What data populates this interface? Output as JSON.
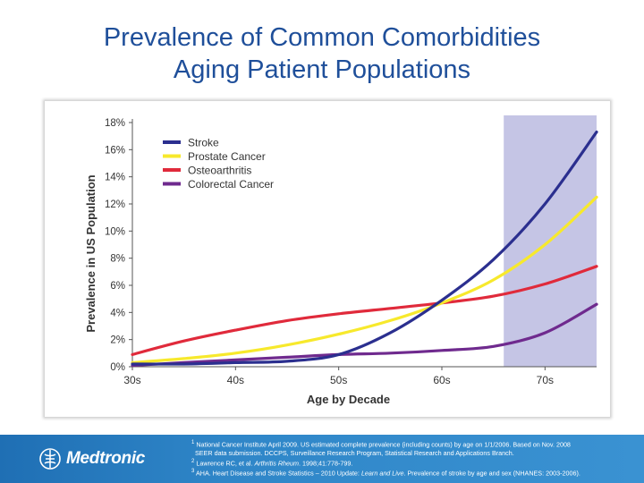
{
  "slide": {
    "title_line1": "Prevalence of Common Comorbidities",
    "title_line2": "Aging Patient Populations"
  },
  "colors": {
    "title": "#1f4f9a",
    "footer": "#2a7fc2",
    "highlight_band": "#b7b7df"
  },
  "chart_data": {
    "type": "line",
    "xlabel": "Age by Decade",
    "ylabel": "Prevalence in US Population",
    "x_ticks": [
      "30s",
      "40s",
      "50s",
      "60s",
      "70s"
    ],
    "x_tick_values": [
      30,
      40,
      50,
      60,
      70
    ],
    "xlim": [
      30,
      75
    ],
    "y_ticks": [
      "0%",
      "2%",
      "4%",
      "6%",
      "8%",
      "10%",
      "12%",
      "14%",
      "16%",
      "18%"
    ],
    "ylim": [
      0,
      18
    ],
    "highlight_range": [
      66,
      75
    ],
    "grid": false,
    "legend_position": "top-left",
    "series": [
      {
        "name": "Stroke",
        "color": "#2b2f8f",
        "x": [
          30,
          35,
          40,
          45,
          50,
          55,
          60,
          65,
          70,
          75
        ],
        "y": [
          0.2,
          0.2,
          0.3,
          0.4,
          0.9,
          2.5,
          4.9,
          7.9,
          12.0,
          17.3
        ]
      },
      {
        "name": "Prostate Cancer",
        "color": "#f7e92c",
        "x": [
          30,
          35,
          40,
          45,
          50,
          55,
          60,
          65,
          70,
          75
        ],
        "y": [
          0.3,
          0.6,
          1.0,
          1.6,
          2.4,
          3.4,
          4.7,
          6.4,
          9.0,
          12.5
        ]
      },
      {
        "name": "Osteoarthritis",
        "color": "#e02a3b",
        "x": [
          30,
          35,
          40,
          45,
          50,
          55,
          60,
          65,
          70,
          75
        ],
        "y": [
          0.9,
          1.9,
          2.7,
          3.4,
          3.9,
          4.3,
          4.7,
          5.2,
          6.1,
          7.4
        ]
      },
      {
        "name": "Colorectal Cancer",
        "color": "#6f2a8e",
        "x": [
          30,
          35,
          40,
          45,
          50,
          55,
          60,
          65,
          70,
          75
        ],
        "y": [
          0.1,
          0.3,
          0.5,
          0.7,
          0.9,
          1.0,
          1.2,
          1.5,
          2.5,
          4.6
        ]
      }
    ]
  },
  "footer": {
    "logo_text": "Medtronic",
    "ref1_sup": "1",
    "ref1_text": "National Cancer Institute April 2009. US estimated complete prevalence (including counts) by age on 1/1/2006. Based on Nov. 2008",
    "ref1_cont": "SEER data submission. DCCPS, Surveillance Research Program, Statistical Research and Applications Branch.",
    "ref2_sup": "2",
    "ref2_pre": "Lawrence RC, et al.",
    "ref2_journal": "Arthritis Rheum",
    "ref2_post": ". 1998;41:778-799.",
    "ref3_sup": "3",
    "ref3_pre": "AHA. Heart Disease and Stroke Statistics – 2010 Update:",
    "ref3_italic": "Learn and Live",
    "ref3_post": ". Prevalence of stroke by age and sex (NHANES: 2003-2006)."
  }
}
